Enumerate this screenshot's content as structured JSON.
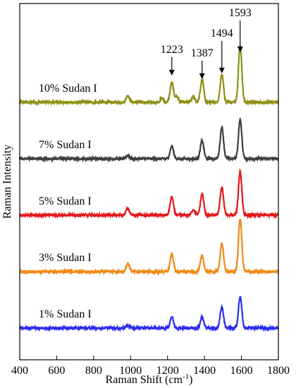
{
  "chart_data": {
    "type": "line",
    "xlabel": "Raman Shift (cm",
    "xlabel_sup": "-1",
    "xlabel_close": ")",
    "ylabel": "Raman Intensity",
    "xlim": [
      400,
      1800
    ],
    "xticks": [
      400,
      600,
      800,
      1000,
      1200,
      1400,
      1600,
      1800
    ],
    "yticks_shown": false,
    "grid": false,
    "series": [
      {
        "name": "10% Sudan I",
        "color": "#8f8f14",
        "offset": 4,
        "peaks": [
          {
            "x": 985,
            "h": 0.1
          },
          {
            "x": 1170,
            "h": 0.06
          },
          {
            "x": 1223,
            "h": 0.28
          },
          {
            "x": 1250,
            "h": 0.08
          },
          {
            "x": 1340,
            "h": 0.08
          },
          {
            "x": 1387,
            "h": 0.32
          },
          {
            "x": 1494,
            "h": 0.4
          },
          {
            "x": 1593,
            "h": 0.8
          }
        ]
      },
      {
        "name": "7% Sudan I",
        "color": "#3d3d3d",
        "offset": 3,
        "peaks": [
          {
            "x": 985,
            "h": 0.05
          },
          {
            "x": 1223,
            "h": 0.18
          },
          {
            "x": 1387,
            "h": 0.26
          },
          {
            "x": 1494,
            "h": 0.45
          },
          {
            "x": 1593,
            "h": 0.55
          }
        ]
      },
      {
        "name": "5% Sudan I",
        "color": "#e6161a",
        "offset": 2,
        "peaks": [
          {
            "x": 985,
            "h": 0.1
          },
          {
            "x": 1223,
            "h": 0.26
          },
          {
            "x": 1340,
            "h": 0.08
          },
          {
            "x": 1387,
            "h": 0.3
          },
          {
            "x": 1494,
            "h": 0.4
          },
          {
            "x": 1593,
            "h": 0.62
          }
        ]
      },
      {
        "name": "3% Sudan I",
        "color": "#f08a16",
        "offset": 1,
        "peaks": [
          {
            "x": 985,
            "h": 0.12
          },
          {
            "x": 1223,
            "h": 0.25
          },
          {
            "x": 1387,
            "h": 0.22
          },
          {
            "x": 1494,
            "h": 0.4
          },
          {
            "x": 1593,
            "h": 0.75
          }
        ]
      },
      {
        "name": "1% Sudan I",
        "color": "#2b2bf0",
        "offset": 0,
        "peaks": [
          {
            "x": 985,
            "h": 0.04
          },
          {
            "x": 1223,
            "h": 0.16
          },
          {
            "x": 1387,
            "h": 0.16
          },
          {
            "x": 1494,
            "h": 0.3
          },
          {
            "x": 1593,
            "h": 0.44
          }
        ]
      }
    ],
    "annotations": [
      {
        "text": "1223",
        "x": 1223
      },
      {
        "text": "1387",
        "x": 1387
      },
      {
        "text": "1494",
        "x": 1494
      },
      {
        "text": "1593",
        "x": 1593
      }
    ]
  }
}
